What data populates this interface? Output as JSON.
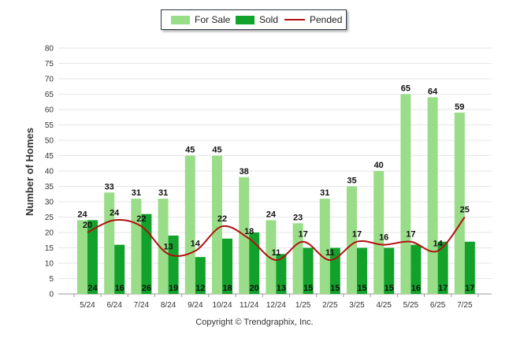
{
  "chart_data": {
    "type": "bar",
    "categories": [
      "5/24",
      "6/24",
      "7/24",
      "8/24",
      "9/24",
      "10/24",
      "11/24",
      "12/24",
      "1/25",
      "2/25",
      "3/25",
      "4/25",
      "5/25",
      "6/25",
      "7/25"
    ],
    "series": [
      {
        "name": "For Sale",
        "type": "bar",
        "color": "#99dd88",
        "values": [
          24,
          33,
          31,
          31,
          45,
          45,
          38,
          24,
          23,
          31,
          35,
          40,
          65,
          64,
          59
        ]
      },
      {
        "name": "Sold",
        "type": "bar",
        "color": "#12a12a",
        "values": [
          24,
          16,
          26,
          19,
          12,
          18,
          20,
          13,
          15,
          15,
          15,
          15,
          16,
          17,
          17
        ]
      },
      {
        "name": "Pended",
        "type": "line",
        "color": "#b01010",
        "values": [
          20,
          24,
          22,
          13,
          14,
          22,
          18,
          11,
          17,
          11,
          17,
          16,
          17,
          14,
          25
        ]
      }
    ],
    "ylabel": "Number of Homes",
    "ylim": [
      0,
      80
    ],
    "yticks": [
      0,
      5,
      10,
      15,
      20,
      25,
      30,
      35,
      40,
      45,
      50,
      55,
      60,
      65,
      70,
      75,
      80
    ],
    "grid": true,
    "legend_position": "top-center"
  },
  "copyright": "Copyright © Trendgraphix, Inc."
}
